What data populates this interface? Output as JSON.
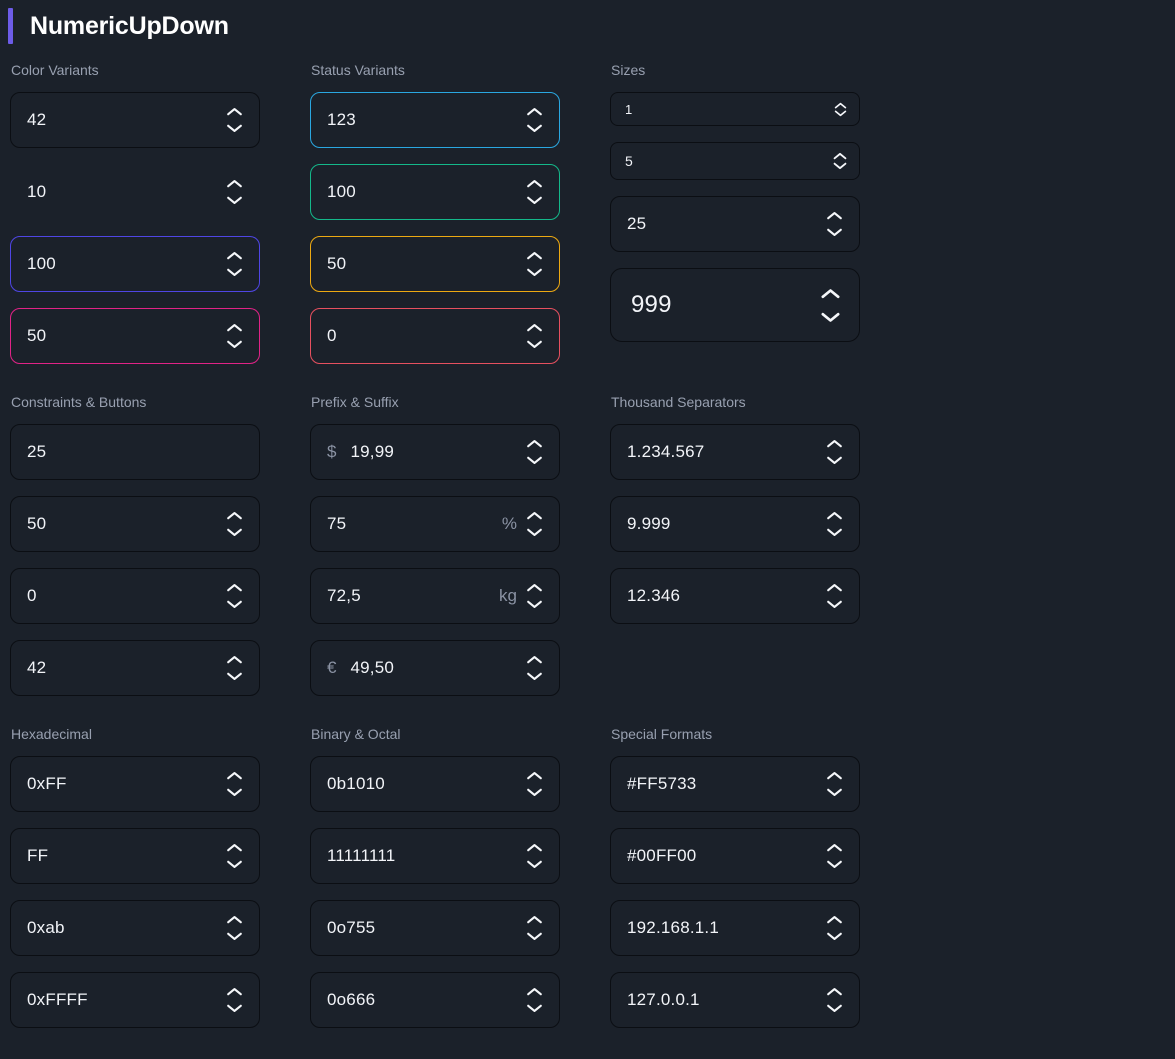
{
  "page": {
    "title": "NumericUpDown"
  },
  "colors": {
    "accent": "#6d5ce8",
    "background": "#1b212a",
    "text": "#f2f4f8",
    "section_label": "#98a0b0",
    "affix": "#8b93a4",
    "variants": {
      "default": "#0b0e13",
      "ghost": "transparent",
      "primary": "#4f46e5",
      "pink": "#e12387",
      "info": "#2aa7e0",
      "success": "#14b88a",
      "warning": "#eda912",
      "danger": "#e6505f"
    }
  },
  "icons": {
    "increment": "chevron-up",
    "decrement": "chevron-down"
  },
  "sections": [
    {
      "label": "Color Variants",
      "inputs": [
        {
          "value": "42",
          "variant": "default"
        },
        {
          "value": "10",
          "variant": "ghost"
        },
        {
          "value": "100",
          "variant": "primary"
        },
        {
          "value": "50",
          "variant": "pink"
        }
      ]
    },
    {
      "label": "Status Variants",
      "inputs": [
        {
          "value": "123",
          "variant": "info"
        },
        {
          "value": "100",
          "variant": "success"
        },
        {
          "value": "50",
          "variant": "warning"
        },
        {
          "value": "0",
          "variant": "danger"
        }
      ]
    },
    {
      "label": "Sizes",
      "inputs": [
        {
          "value": "1",
          "size": "xs"
        },
        {
          "value": "5",
          "size": "sm"
        },
        {
          "value": "25",
          "size": "md"
        },
        {
          "value": "999",
          "size": "lg"
        }
      ]
    },
    {
      "label": "Constraints & Buttons",
      "inputs": [
        {
          "value": "25",
          "spinner": false
        },
        {
          "value": "50"
        },
        {
          "value": "0"
        },
        {
          "value": "42"
        }
      ]
    },
    {
      "label": "Prefix & Suffix",
      "inputs": [
        {
          "value": "19,99",
          "prefix": "$"
        },
        {
          "value": "75",
          "suffix": "%"
        },
        {
          "value": "72,5",
          "suffix": "kg"
        },
        {
          "value": "49,50",
          "prefix": "€"
        }
      ]
    },
    {
      "label": "Thousand Separators",
      "inputs": [
        {
          "value": "1.234.567"
        },
        {
          "value": "9.999"
        },
        {
          "value": "12.346"
        }
      ]
    },
    {
      "label": "Hexadecimal",
      "inputs": [
        {
          "value": "0xFF"
        },
        {
          "value": "FF"
        },
        {
          "value": "0xab"
        },
        {
          "value": "0xFFFF"
        }
      ]
    },
    {
      "label": "Binary & Octal",
      "inputs": [
        {
          "value": "0b1010"
        },
        {
          "value": "11111111"
        },
        {
          "value": "0o755"
        },
        {
          "value": "0o666"
        }
      ]
    },
    {
      "label": "Special Formats",
      "inputs": [
        {
          "value": "#FF5733"
        },
        {
          "value": "#00FF00"
        },
        {
          "value": "192.168.1.1"
        },
        {
          "value": "127.0.0.1"
        }
      ]
    }
  ]
}
